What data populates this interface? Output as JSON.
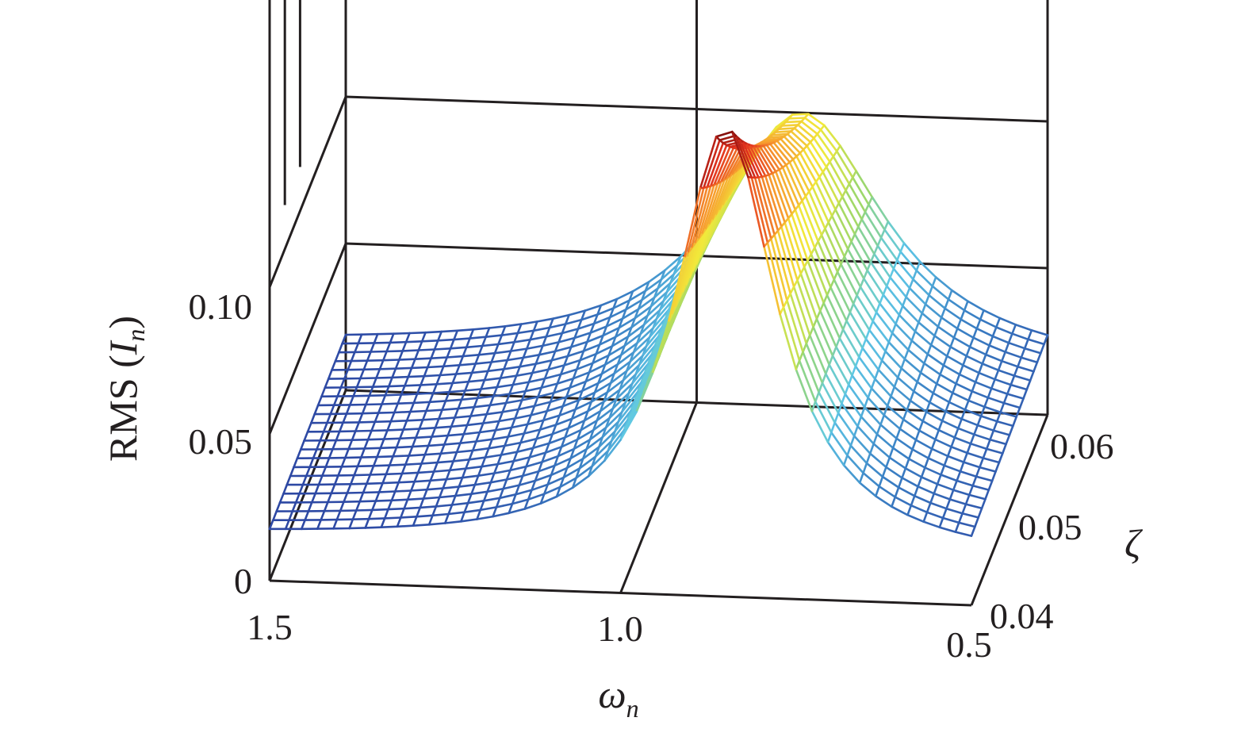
{
  "chart_data": {
    "type": "surface",
    "render": "3d-wireframe-mesh",
    "axes": {
      "x": {
        "symbol": "ω",
        "subscript": "n",
        "ticks": [
          "1.5",
          "1.0",
          "0.5"
        ],
        "range": [
          0.5,
          1.5
        ]
      },
      "y": {
        "symbol": "ζ",
        "ticks": [
          "0.04",
          "0.05",
          "0.06"
        ],
        "range": [
          0.04,
          0.065
        ]
      },
      "z": {
        "label_prefix": "RMS (",
        "symbol": "I",
        "subscript": "n",
        "label_suffix": ")",
        "ticks": [
          "0",
          "0.05",
          "0.10"
        ],
        "range": [
          0,
          0.2
        ]
      }
    },
    "surface": {
      "description_of_values": "RMS(I_n) peaks sharply near ω_n ≈ 0.85, highest (≈0.16) at the smallest damping ζ ≈ 0.04 and decreasing as ζ increases; near-flat (≈0.02) away from the resonance",
      "peak": {
        "omega": 0.85,
        "zeta": 0.04,
        "rms": 0.16
      },
      "baseline_rms": 0.015
    },
    "grid": true,
    "colormap": [
      "#2b3f9e",
      "#3a7fc4",
      "#5ec8e6",
      "#9ed86a",
      "#f2e93a",
      "#f79a2e",
      "#e3321f",
      "#7a0b0b"
    ]
  }
}
